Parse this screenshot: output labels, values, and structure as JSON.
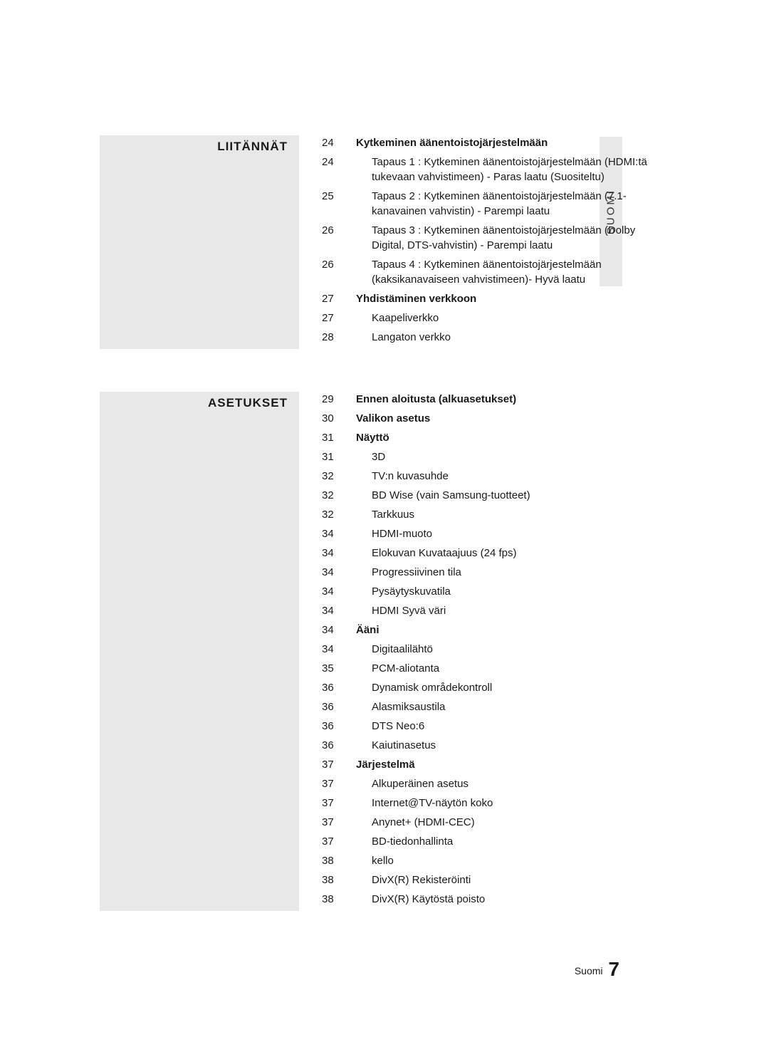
{
  "sideTab": "SUOMI",
  "footer": {
    "label": "Suomi",
    "page": "7"
  },
  "sections": [
    {
      "title": "LIITÄNNÄT",
      "rows": [
        {
          "page": "24",
          "text": "Kytkeminen äänentoistojärjestelmään",
          "bold": true
        },
        {
          "page": "24",
          "text": "Tapaus 1 : Kytkeminen äänentoistojärjestelmään (HDMI:tä tukevaan vahvistimeen) - Paras laatu (Suositeltu)",
          "sub": true
        },
        {
          "page": "25",
          "text": "Tapaus 2 : Kytkeminen äänentoistojärjestelmään (7.1-kanavainen vahvistin) - Parempi laatu",
          "sub": true
        },
        {
          "page": "26",
          "text": "Tapaus 3 : Kytkeminen äänentoistojärjestelmään (Dolby Digital, DTS-vahvistin) - Parempi laatu",
          "sub": true
        },
        {
          "page": "26",
          "text": "Tapaus 4 : Kytkeminen äänentoistojärjestelmään (kaksikanavaiseen vahvistimeen)- Hyvä laatu",
          "sub": true
        },
        {
          "page": "27",
          "text": "Yhdistäminen verkkoon",
          "bold": true
        },
        {
          "page": "27",
          "text": "Kaapeliverkko",
          "sub": true
        },
        {
          "page": "28",
          "text": "Langaton verkko",
          "sub": true
        }
      ]
    },
    {
      "title": "ASETUKSET",
      "rows": [
        {
          "page": "29",
          "text": "Ennen aloitusta (alkuasetukset)",
          "bold": true
        },
        {
          "page": "30",
          "text": "Valikon asetus",
          "bold": true
        },
        {
          "page": "31",
          "text": "Näyttö",
          "bold": true
        },
        {
          "page": "31",
          "text": "3D",
          "sub": true
        },
        {
          "page": "32",
          "text": "TV:n kuvasuhde",
          "sub": true
        },
        {
          "page": "32",
          "text": "BD Wise (vain Samsung-tuotteet)",
          "sub": true
        },
        {
          "page": "32",
          "text": "Tarkkuus",
          "sub": true
        },
        {
          "page": "34",
          "text": "HDMI-muoto",
          "sub": true
        },
        {
          "page": "34",
          "text": "Elokuvan Kuvataajuus (24 fps)",
          "sub": true
        },
        {
          "page": "34",
          "text": "Progressiivinen tila",
          "sub": true
        },
        {
          "page": "34",
          "text": "Pysäytyskuvatila",
          "sub": true
        },
        {
          "page": "34",
          "text": "HDMI Syvä väri",
          "sub": true
        },
        {
          "page": "34",
          "text": "Ääni",
          "bold": true
        },
        {
          "page": "34",
          "text": "Digitaalilähtö",
          "sub": true
        },
        {
          "page": "35",
          "text": "PCM-aliotanta",
          "sub": true
        },
        {
          "page": "36",
          "text": "Dynamisk områdekontroll",
          "sub": true
        },
        {
          "page": "36",
          "text": "Alasmiksaustila",
          "sub": true
        },
        {
          "page": "36",
          "text": "DTS Neo:6",
          "sub": true
        },
        {
          "page": "36",
          "text": "Kaiutinasetus",
          "sub": true
        },
        {
          "page": "37",
          "text": "Järjestelmä",
          "bold": true
        },
        {
          "page": "37",
          "text": "Alkuperäinen asetus",
          "sub": true
        },
        {
          "page": "37",
          "text": "Internet@TV-näytön koko",
          "sub": true
        },
        {
          "page": "37",
          "text": "Anynet+ (HDMI-CEC)",
          "sub": true
        },
        {
          "page": "37",
          "text": "BD-tiedonhallinta",
          "sub": true
        },
        {
          "page": "38",
          "text": "kello",
          "sub": true
        },
        {
          "page": "38",
          "text": "DivX(R) Rekisteröinti",
          "sub": true
        },
        {
          "page": "38",
          "text": "DivX(R) Käytöstä poisto",
          "sub": true
        }
      ]
    }
  ]
}
